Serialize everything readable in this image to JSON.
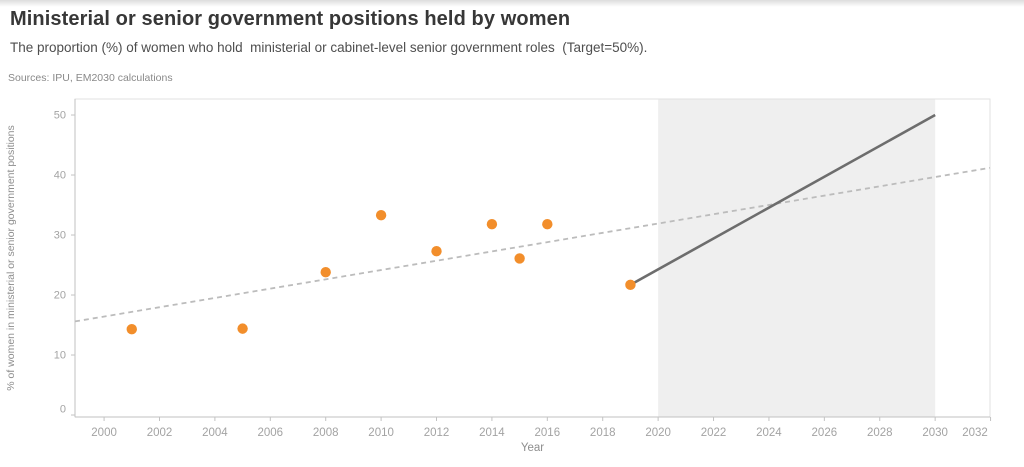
{
  "header": {
    "title": "Ministerial or senior government positions held by women",
    "subtitle": "The proportion (%) of women who hold  ministerial or cabinet-level senior government roles  (Target=50%).",
    "sources": "Sources: IPU, EM2030 calculations"
  },
  "chart_data": {
    "type": "scatter",
    "title": "Ministerial or senior government positions held by women",
    "subtitle": "The proportion (%) of women who hold ministerial or cabinet-level senior government roles (Target=50%).",
    "xlabel": "Year",
    "ylabel": "% of women in ministerial or senior government positions",
    "x_ticks": [
      2000,
      2002,
      2004,
      2006,
      2008,
      2010,
      2012,
      2014,
      2016,
      2018,
      2020,
      2022,
      2024,
      2026,
      2028,
      2030,
      2032
    ],
    "y_ticks": [
      0,
      10,
      20,
      30,
      40,
      50
    ],
    "x_domain": [
      1998.95,
      2031.98
    ],
    "y_domain": [
      -0.33,
      52.67
    ],
    "grid": false,
    "legend": "none",
    "target": 50,
    "projection_band": {
      "from": 2020,
      "to": 2030,
      "color": "#efefef"
    },
    "series": [
      {
        "name": "observed",
        "mark": "point",
        "color": "#f28e2b",
        "points": [
          [
            2001,
            14.3
          ],
          [
            2005,
            14.4
          ],
          [
            2008,
            23.8
          ],
          [
            2010,
            33.3
          ],
          [
            2012,
            27.3
          ],
          [
            2014,
            31.8
          ],
          [
            2015,
            26.1
          ],
          [
            2016,
            31.8
          ],
          [
            2019,
            21.7
          ]
        ]
      },
      {
        "name": "trend",
        "mark": "line",
        "style": "dashed",
        "color": "#bcbcbc",
        "points": [
          [
            1998.95,
            15.6
          ],
          [
            2031.98,
            41.2
          ]
        ]
      },
      {
        "name": "projection-to-target",
        "mark": "line",
        "style": "solid",
        "color": "#6d6d6d",
        "points": [
          [
            2019,
            21.7
          ],
          [
            2030,
            50
          ]
        ]
      }
    ],
    "colors": {
      "point": "#f28e2b",
      "trend_line": "#bcbcbc",
      "projection_line": "#6d6d6d",
      "band": "#efefef",
      "axis_line": "#c2c2c2",
      "pane_border": "#e2e2e2",
      "tick_label": "#a3a3a3",
      "axis_title": "#8e8e8e"
    }
  }
}
